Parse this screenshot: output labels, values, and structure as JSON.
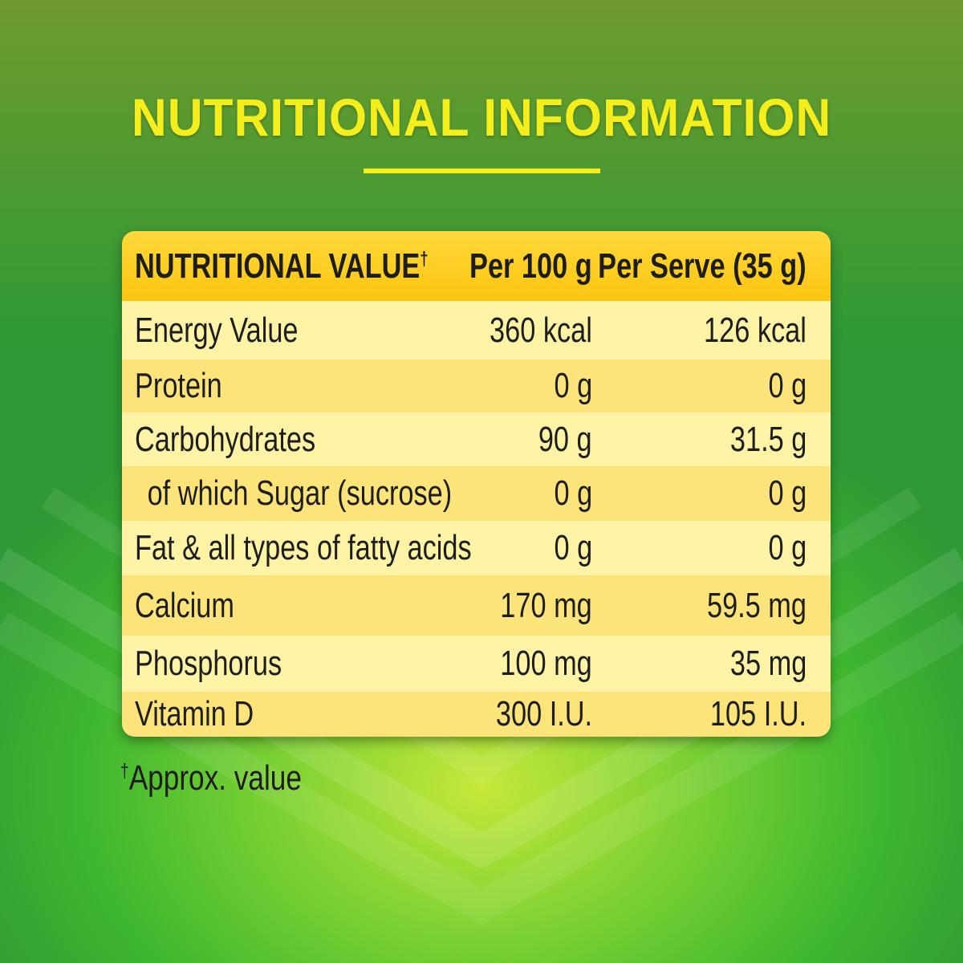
{
  "title": "NUTRITIONAL INFORMATION",
  "table": {
    "headers": [
      "NUTRITIONAL VALUE",
      "Per 100 g",
      "Per Serve (35 g)"
    ],
    "header_mark": "†",
    "rows": [
      [
        "Energy Value",
        "360 kcal",
        "126 kcal"
      ],
      [
        "Protein",
        "0 g",
        "0 g"
      ],
      [
        "Carbohydrates",
        "90 g",
        "31.5 g"
      ],
      [
        " of which Sugar (sucrose)",
        "0 g",
        "0 g"
      ],
      [
        "Fat & all types of fatty acids",
        "0 g",
        "0 g"
      ],
      [
        "Calcium",
        "170 mg",
        "59.5 mg"
      ],
      [
        "Phosphorus",
        "100 mg",
        "35 mg"
      ],
      [
        "Vitamin D",
        "300 I.U.",
        "105 I.U."
      ]
    ]
  },
  "footnote": {
    "mark": "†",
    "text": "Approx. value"
  },
  "colors": {
    "title": "#f3ee1c",
    "header": "#fcc510",
    "row_light": "#fff4a6",
    "row_dark": "#fde47a",
    "background": "#3fb82f"
  }
}
